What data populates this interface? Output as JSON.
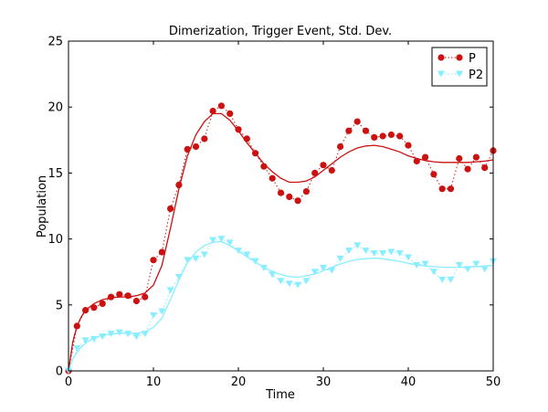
{
  "chart_data": {
    "type": "line",
    "title": "Dimerization, Trigger Event, Std. Dev.",
    "xlabel": "Time",
    "ylabel": "Population",
    "xlim": [
      0,
      50
    ],
    "ylim": [
      0,
      25
    ],
    "xticks": [
      0,
      10,
      20,
      30,
      40,
      50
    ],
    "yticks": [
      0,
      5,
      10,
      15,
      20,
      25
    ],
    "grid": false,
    "legend_position": "top-right",
    "series": [
      {
        "name": "P",
        "color": "#cc1111",
        "marker": "circle",
        "style": "dotted-with-markers",
        "x": [
          0,
          1,
          2,
          3,
          4,
          5,
          6,
          7,
          8,
          9,
          10,
          11,
          12,
          13,
          14,
          15,
          16,
          17,
          18,
          19,
          20,
          21,
          22,
          23,
          24,
          25,
          26,
          27,
          28,
          29,
          30,
          31,
          32,
          33,
          34,
          35,
          36,
          37,
          38,
          39,
          40,
          41,
          42,
          43,
          44,
          45,
          46,
          47,
          48,
          49,
          50
        ],
        "y": [
          0,
          3.4,
          4.6,
          4.8,
          5.1,
          5.6,
          5.8,
          5.7,
          5.3,
          5.6,
          8.4,
          9.0,
          12.3,
          14.1,
          16.8,
          17.0,
          17.6,
          19.7,
          20.1,
          19.5,
          18.3,
          17.6,
          16.5,
          15.5,
          14.6,
          13.5,
          13.2,
          12.9,
          13.6,
          15.0,
          15.6,
          15.2,
          17.0,
          18.2,
          18.9,
          18.2,
          17.7,
          17.8,
          17.9,
          17.8,
          17.1,
          15.9,
          16.2,
          14.9,
          13.8,
          13.8,
          16.1,
          15.3,
          16.2,
          15.4,
          16.7
        ]
      },
      {
        "name": "P2",
        "color": "#88eeff",
        "marker": "triangle-down",
        "style": "dotted-with-markers",
        "x": [
          0,
          1,
          2,
          3,
          4,
          5,
          6,
          7,
          8,
          9,
          10,
          11,
          12,
          13,
          14,
          15,
          16,
          17,
          18,
          19,
          20,
          21,
          22,
          23,
          24,
          25,
          26,
          27,
          28,
          29,
          30,
          31,
          32,
          33,
          34,
          35,
          36,
          37,
          38,
          39,
          40,
          41,
          42,
          43,
          44,
          45,
          46,
          47,
          48,
          49,
          50
        ],
        "y": [
          0,
          1.7,
          2.3,
          2.4,
          2.6,
          2.8,
          2.9,
          2.8,
          2.6,
          2.8,
          4.2,
          4.5,
          6.1,
          7.1,
          8.4,
          8.5,
          8.8,
          9.9,
          10.0,
          9.7,
          9.1,
          8.8,
          8.3,
          7.8,
          7.3,
          6.8,
          6.6,
          6.5,
          6.8,
          7.5,
          7.8,
          7.6,
          8.5,
          9.1,
          9.5,
          9.1,
          8.9,
          8.9,
          9.0,
          8.9,
          8.6,
          8.0,
          8.1,
          7.5,
          6.9,
          6.9,
          8.0,
          7.7,
          8.1,
          7.7,
          8.3
        ]
      }
    ],
    "fitted_curves": [
      {
        "color": "#cc1111",
        "x": [
          0,
          0.5,
          1,
          1.5,
          2,
          3,
          4,
          5,
          6,
          7,
          8,
          9,
          10,
          11,
          12,
          13,
          14,
          15,
          16,
          17,
          18,
          19,
          20,
          21,
          22,
          23,
          24,
          25,
          26,
          27,
          28,
          29,
          30,
          31,
          32,
          33,
          34,
          35,
          36,
          37,
          38,
          39,
          40,
          41,
          42,
          43,
          44,
          45,
          46,
          47,
          48,
          49,
          50
        ],
        "y": [
          0,
          2.2,
          3.4,
          4.1,
          4.6,
          5.1,
          5.4,
          5.55,
          5.6,
          5.6,
          5.7,
          5.9,
          6.5,
          8.0,
          10.8,
          13.8,
          16.3,
          17.9,
          18.9,
          19.5,
          19.5,
          19.0,
          18.2,
          17.3,
          16.5,
          15.7,
          15.1,
          14.6,
          14.3,
          14.3,
          14.4,
          14.7,
          15.2,
          15.7,
          16.2,
          16.6,
          16.9,
          17.05,
          17.1,
          17.0,
          16.8,
          16.6,
          16.3,
          16.1,
          15.95,
          15.85,
          15.8,
          15.8,
          15.8,
          15.8,
          15.85,
          15.9,
          16.0
        ]
      },
      {
        "color": "#88eeff",
        "x": [
          0,
          0.5,
          1,
          1.5,
          2,
          3,
          4,
          5,
          6,
          7,
          8,
          9,
          10,
          11,
          12,
          13,
          14,
          15,
          16,
          17,
          18,
          19,
          20,
          21,
          22,
          23,
          24,
          25,
          26,
          27,
          28,
          29,
          30,
          31,
          32,
          33,
          34,
          35,
          36,
          37,
          38,
          39,
          40,
          41,
          42,
          43,
          44,
          45,
          46,
          47,
          48,
          49,
          50
        ],
        "y": [
          0,
          0.9,
          1.4,
          1.8,
          2.1,
          2.5,
          2.7,
          2.8,
          2.85,
          2.85,
          2.85,
          2.95,
          3.3,
          4.0,
          5.4,
          6.9,
          8.2,
          9.0,
          9.5,
          9.75,
          9.8,
          9.5,
          9.1,
          8.65,
          8.25,
          7.85,
          7.55,
          7.3,
          7.15,
          7.1,
          7.2,
          7.35,
          7.6,
          7.85,
          8.1,
          8.3,
          8.45,
          8.5,
          8.55,
          8.5,
          8.4,
          8.3,
          8.15,
          8.05,
          7.95,
          7.9,
          7.85,
          7.85,
          7.85,
          7.85,
          7.9,
          7.95,
          8.0
        ]
      }
    ]
  }
}
